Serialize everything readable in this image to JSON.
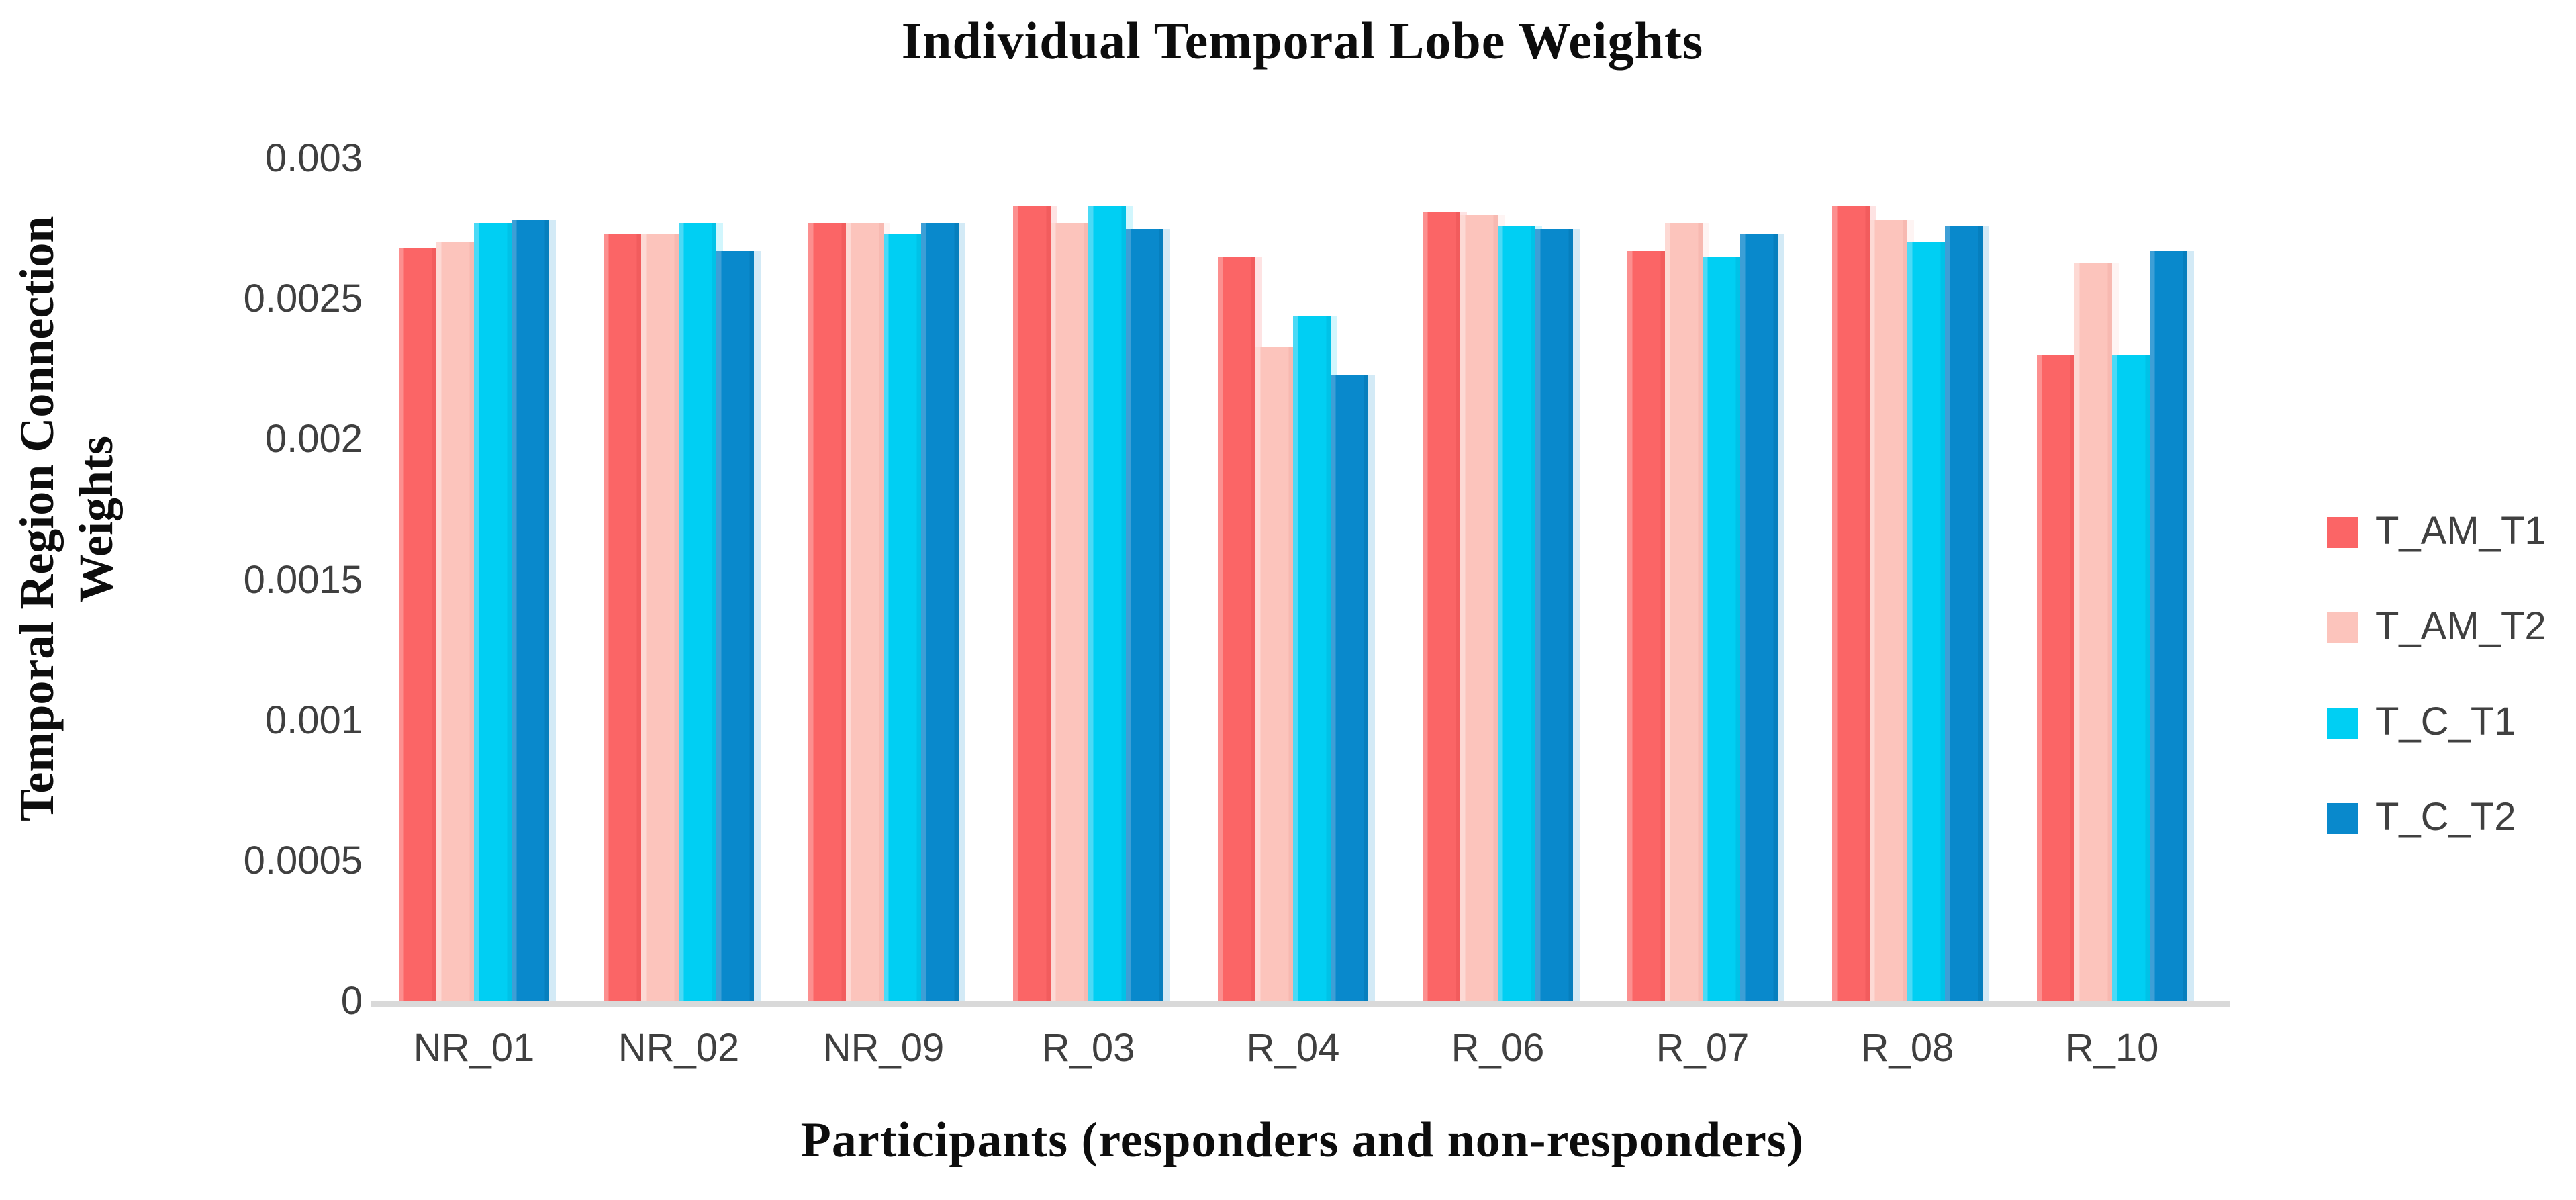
{
  "title": "Individual Temporal Lobe Weights",
  "chart_data": {
    "type": "bar",
    "title": "Individual Temporal Lobe Weights",
    "xlabel": "Participants  (responders and non-responders)",
    "ylabel": "Temporal Region Connection Weights",
    "ylabel_lines": [
      "Temporal Region Connection",
      "Weights"
    ],
    "categories": [
      "NR_01",
      "NR_02",
      "NR_09",
      "R_03",
      "R_04",
      "R_06",
      "R_07",
      "R_08",
      "R_10"
    ],
    "series": [
      {
        "name": "T_AM_T1",
        "color": "#FB6566",
        "highlight": "#FC8F8F",
        "edge": "#F25C5D",
        "values": [
          0.00268,
          0.00273,
          0.00277,
          0.00283,
          0.00265,
          0.00281,
          0.00267,
          0.00283,
          0.0023
        ]
      },
      {
        "name": "T_AM_T2",
        "color": "#FCC4BC",
        "highlight": "#FDD9D4",
        "edge": "#F7B9B1",
        "values": [
          0.0027,
          0.00273,
          0.00277,
          0.00277,
          0.00233,
          0.0028,
          0.00277,
          0.00278,
          0.00263
        ]
      },
      {
        "name": "T_C_T1",
        "color": "#00CFF3",
        "highlight": "#4ADAF6",
        "edge": "#00C2E7",
        "values": [
          0.00277,
          0.00277,
          0.00273,
          0.00283,
          0.00244,
          0.00276,
          0.00265,
          0.0027,
          0.0023
        ]
      },
      {
        "name": "T_C_T2",
        "color": "#0989CC",
        "highlight": "#3D9FD6",
        "edge": "#067FBE",
        "values": [
          0.00278,
          0.00267,
          0.00277,
          0.00275,
          0.00223,
          0.00275,
          0.00273,
          0.00276,
          0.00267
        ]
      }
    ],
    "ylim": [
      0,
      0.003
    ],
    "yticks": [
      {
        "value": 0.003,
        "label": "0.003"
      },
      {
        "value": 0.0025,
        "label": "0.0025"
      },
      {
        "value": 0.002,
        "label": "0.002"
      },
      {
        "value": 0.0015,
        "label": "0.0015"
      },
      {
        "value": 0.001,
        "label": "0.001"
      },
      {
        "value": 0.0005,
        "label": "0.0005"
      },
      {
        "value": 0,
        "label": "0"
      }
    ],
    "legend_position": "right",
    "grid": false
  },
  "colors": {
    "axis_line": "#D9D9D9",
    "tick_text": "#3F3F3F",
    "title_text": "#0D0D0D"
  }
}
